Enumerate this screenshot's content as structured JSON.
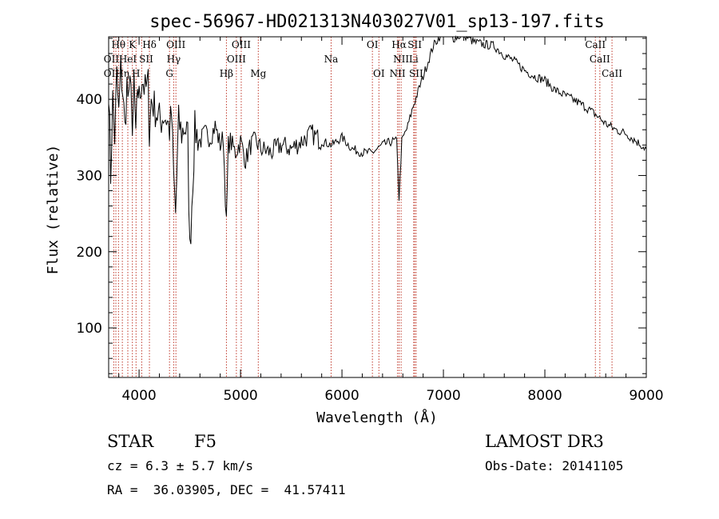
{
  "chart_data": {
    "type": "line",
    "title": "spec-56967-HD021313N403027V01_sp13-197.fits",
    "xlabel": "Wavelength (Å)",
    "ylabel": "Flux (relative)",
    "xlim": [
      3700,
      9000
    ],
    "ylim": [
      35,
      482
    ],
    "grid": false,
    "x_ticks": [
      4000,
      5000,
      6000,
      7000,
      8000,
      9000
    ],
    "y_ticks": [
      100,
      200,
      300,
      400
    ],
    "series": [
      {
        "x": [
          3700,
          3720,
          3740,
          3760,
          3780,
          3800,
          3820,
          3840,
          3860,
          3880,
          3900,
          3920,
          3934,
          3950,
          3968,
          3985,
          4000,
          4030,
          4060,
          4090,
          4102,
          4120,
          4150,
          4180,
          4210,
          4240,
          4270,
          4300,
          4320,
          4340,
          4360,
          4390,
          4420,
          4450,
          4480,
          4500,
          4550,
          4600,
          4650,
          4700,
          4750,
          4800,
          4830,
          4861,
          4880,
          4900,
          4950,
          5000,
          5050,
          5100,
          5150,
          5200,
          5300,
          5400,
          5500,
          5600,
          5700,
          5800,
          5900,
          6000,
          6100,
          6200,
          6300,
          6400,
          6500,
          6540,
          6563,
          6590,
          6650,
          6700,
          6800,
          6900,
          7000,
          7100,
          7200,
          7300,
          7400,
          7500,
          7600,
          7700,
          7800,
          7900,
          8000,
          8100,
          8200,
          8300,
          8400,
          8500,
          8600,
          8700,
          8800,
          8900,
          8950,
          9000
        ],
        "y": [
          420,
          300,
          400,
          350,
          430,
          380,
          440,
          410,
          360,
          420,
          390,
          440,
          330,
          430,
          340,
          420,
          400,
          430,
          410,
          420,
          350,
          400,
          390,
          380,
          370,
          380,
          375,
          360,
          380,
          300,
          250,
          370,
          355,
          365,
          350,
          200,
          360,
          345,
          355,
          350,
          365,
          340,
          350,
          235,
          340,
          345,
          330,
          345,
          320,
          340,
          345,
          335,
          330,
          340,
          335,
          345,
          355,
          345,
          340,
          350,
          335,
          330,
          330,
          340,
          345,
          345,
          270,
          345,
          365,
          390,
          430,
          470,
          490,
          480,
          485,
          475,
          472,
          470,
          458,
          450,
          438,
          430,
          425,
          412,
          405,
          398,
          390,
          380,
          368,
          360,
          355,
          345,
          340,
          335
        ]
      }
    ],
    "annotations": {
      "lines_x": [
        3750,
        3771,
        3797,
        3835,
        3889,
        3934,
        3970,
        4026,
        4102,
        4300,
        4341,
        4363,
        4861,
        4959,
        5007,
        5175,
        5893,
        6300,
        6364,
        6548,
        6563,
        6583,
        6707,
        6717,
        6731,
        8498,
        8542,
        8662
      ],
      "labels": [
        {
          "text": "Hθ",
          "x": 3797,
          "row": 1
        },
        {
          "text": "K",
          "x": 3934,
          "row": 1
        },
        {
          "text": "Hδ",
          "x": 4102,
          "row": 1
        },
        {
          "text": "OIII",
          "x": 4363,
          "row": 1
        },
        {
          "text": "OIII",
          "x": 5007,
          "row": 1
        },
        {
          "text": "OI",
          "x": 6300,
          "row": 1
        },
        {
          "text": "Hα",
          "x": 6563,
          "row": 1
        },
        {
          "text": "SII",
          "x": 6717,
          "row": 1
        },
        {
          "text": "CaII",
          "x": 8498,
          "row": 1
        },
        {
          "text": "OII",
          "x": 3727,
          "row": 2
        },
        {
          "text": "HeI",
          "x": 3889,
          "row": 2
        },
        {
          "text": "SII",
          "x": 4070,
          "row": 2
        },
        {
          "text": "Hγ",
          "x": 4341,
          "row": 2
        },
        {
          "text": "OIII",
          "x": 4959,
          "row": 2
        },
        {
          "text": "Na",
          "x": 5893,
          "row": 2
        },
        {
          "text": "NII",
          "x": 6583,
          "row": 2
        },
        {
          "text": "Li",
          "x": 6707,
          "row": 2
        },
        {
          "text": "CaII",
          "x": 8542,
          "row": 2
        },
        {
          "text": "OII",
          "x": 3727,
          "row": 3
        },
        {
          "text": "Hη",
          "x": 3835,
          "row": 3
        },
        {
          "text": "H",
          "x": 3970,
          "row": 3
        },
        {
          "text": "G",
          "x": 4300,
          "row": 3
        },
        {
          "text": "Hβ",
          "x": 4861,
          "row": 3
        },
        {
          "text": "Mg",
          "x": 5175,
          "row": 3
        },
        {
          "text": "OI",
          "x": 6364,
          "row": 3
        },
        {
          "text": "NII",
          "x": 6548,
          "row": 3
        },
        {
          "text": "SII",
          "x": 6731,
          "row": 3
        },
        {
          "text": "CaII",
          "x": 8662,
          "row": 3
        }
      ]
    }
  },
  "info": {
    "object_type": "STAR",
    "spectral_class": "F5",
    "survey": "LAMOST DR3",
    "cz": "cz = 6.3 ± 5.7 km/s",
    "obs_date": "Obs-Date: 20141105",
    "coords": "RA =  36.03905, DEC =  41.57411"
  }
}
